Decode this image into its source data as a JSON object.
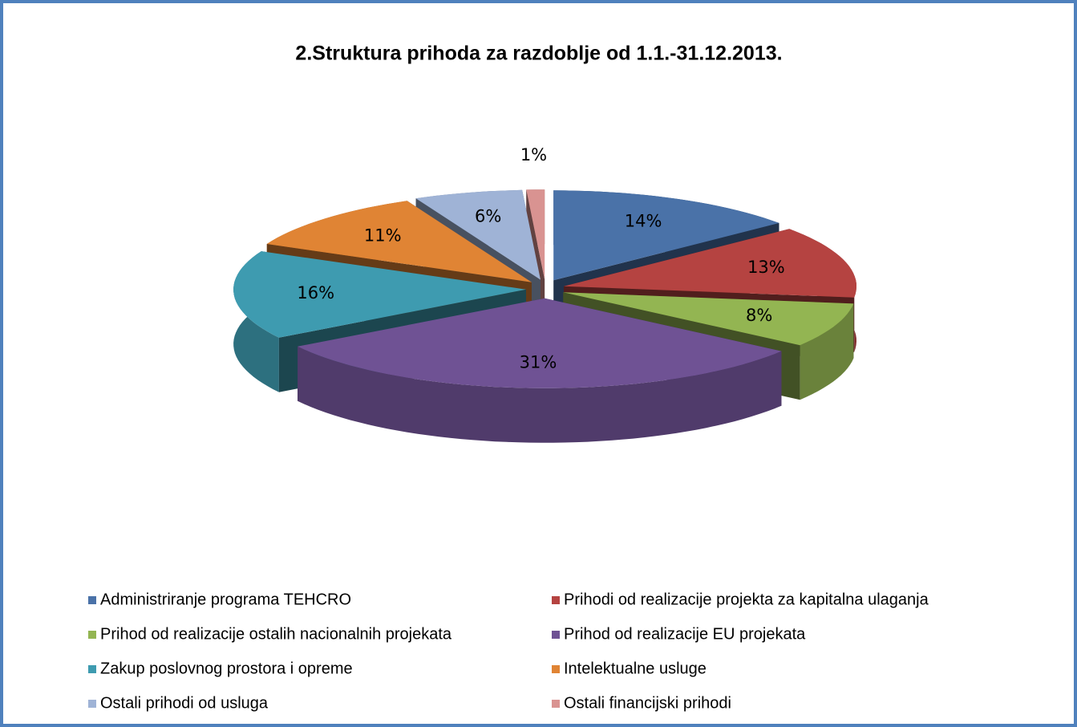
{
  "chart_data": {
    "type": "pie3d",
    "title": "2.Struktura prihoda za razdoblje od 1.1.-31.12.2013.",
    "categories": [
      "Administriranje programa TEHCRO",
      "Prihodi od realizacije projekta za kapitalna ulaganja",
      "Prihod od realizacije ostalih nacionalnih projekata",
      "Prihod od realizacije EU projekata",
      "Zakup poslovnog prostora i opreme",
      "Intelektualne usluge",
      "Ostali prihodi od usluga",
      "Ostali financijski prihodi"
    ],
    "values": [
      14,
      13,
      8,
      31,
      16,
      11,
      6,
      1
    ],
    "value_labels": [
      "14%",
      "13%",
      "8%",
      "31%",
      "16%",
      "11%",
      "6%",
      "1%"
    ],
    "colors": [
      "#4a72a8",
      "#b54341",
      "#93b552",
      "#6f5294",
      "#3e9bb0",
      "#e08434",
      "#9fb3d6",
      "#d99391"
    ],
    "legend": "bottom"
  }
}
